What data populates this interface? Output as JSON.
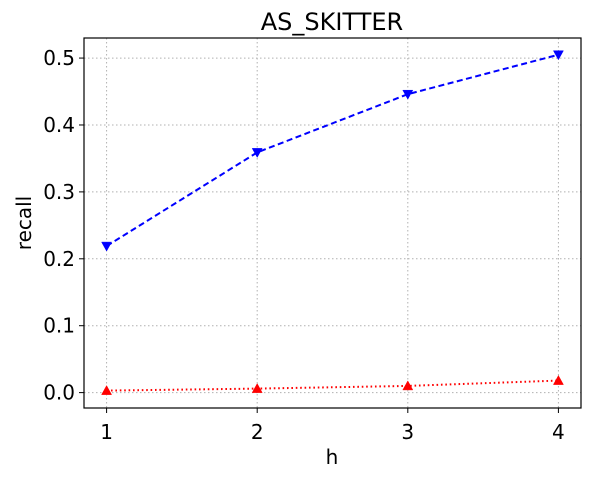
{
  "chart_data": {
    "type": "line",
    "title": "AS_SKITTER",
    "xlabel": "h",
    "ylabel": "recall",
    "x": [
      1,
      2,
      3,
      4
    ],
    "xticks": [
      "1",
      "2",
      "3",
      "4"
    ],
    "xlim": [
      0.85,
      4.15
    ],
    "ylim": [
      -0.023,
      0.53
    ],
    "yticks": [
      "0.0",
      "0.1",
      "0.2",
      "0.3",
      "0.4",
      "0.5"
    ],
    "ytick_values": [
      0.0,
      0.1,
      0.2,
      0.3,
      0.4,
      0.5
    ],
    "grid": true,
    "series": [
      {
        "values": [
          0.219,
          0.359,
          0.446,
          0.505
        ],
        "color": "#0000ff",
        "line_style": "dashed",
        "marker": "triangle-down"
      },
      {
        "values": [
          0.003,
          0.006,
          0.01,
          0.018
        ],
        "color": "#ff0000",
        "line_style": "dotted",
        "marker": "triangle-up"
      }
    ]
  }
}
